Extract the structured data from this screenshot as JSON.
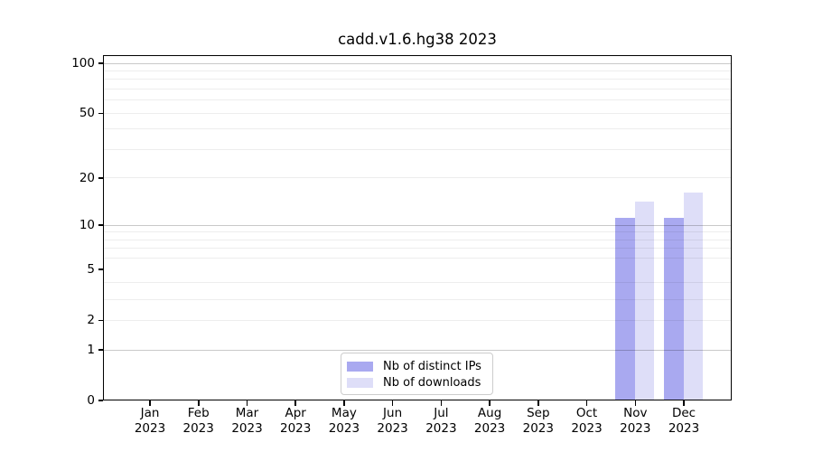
{
  "title": "cadd.v1.6.hg38 2023",
  "chart_data": {
    "type": "bar",
    "title": "cadd.v1.6.hg38 2023",
    "categories": [
      "Jan",
      "Feb",
      "Mar",
      "Apr",
      "May",
      "Jun",
      "Jul",
      "Aug",
      "Sep",
      "Oct",
      "Nov",
      "Dec"
    ],
    "category_year": "2023",
    "series": [
      {
        "name": "Nb of distinct IPs",
        "color": "#a9a9f0",
        "values": [
          0,
          0,
          0,
          0,
          0,
          0,
          0,
          0,
          0,
          0,
          11,
          11
        ]
      },
      {
        "name": "Nb of downloads",
        "color": "#dedef8",
        "values": [
          0,
          0,
          0,
          0,
          0,
          0,
          0,
          0,
          0,
          0,
          14,
          16
        ]
      }
    ],
    "yscale": "log1p",
    "ylim": [
      0,
      112
    ],
    "yticks": [
      0,
      1,
      2,
      5,
      10,
      20,
      50,
      100
    ],
    "major_gridlines": [
      1,
      10,
      100
    ],
    "minor_gridlines": [
      2,
      3,
      4,
      6,
      7,
      8,
      9,
      20,
      30,
      40,
      50,
      60,
      70,
      80,
      90
    ],
    "grid": true,
    "legend_position": "lower center",
    "colors": {
      "background": "#ffffff",
      "axis": "#000000",
      "text": "#000000",
      "major_grid": "#c9c9c9",
      "minor_grid": "#ededed"
    }
  }
}
